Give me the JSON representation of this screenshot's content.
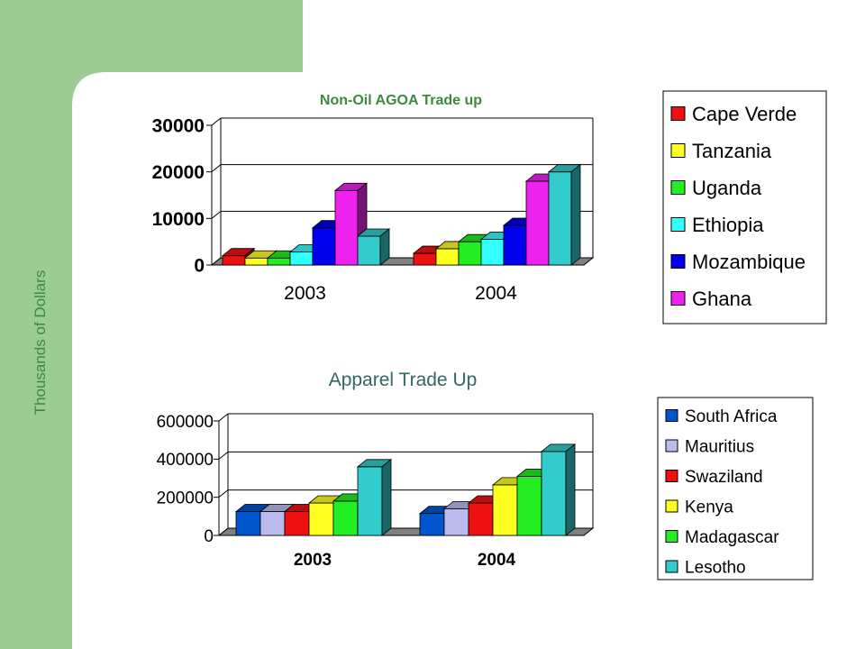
{
  "page": {
    "side_label": "Thousands of Dollars",
    "colors": {
      "sidebar": "#9ccc94",
      "panel": "#ffffff",
      "title_green": "#3d8a3d",
      "title_dark": "#336666"
    }
  },
  "chart_data": [
    {
      "type": "bar",
      "title": "Non-Oil AGOA Trade up",
      "categories": [
        "2003",
        "2004"
      ],
      "ylim": [
        0,
        30000
      ],
      "yticks": [
        "0",
        "10000",
        "20000",
        "30000"
      ],
      "grid": true,
      "legend_position": "right",
      "series": [
        {
          "name": "Cape Verde",
          "color": "#ee1111",
          "values": [
            2000,
            2500
          ]
        },
        {
          "name": "Tanzania",
          "color": "#ffff22",
          "values": [
            1500,
            3500
          ]
        },
        {
          "name": "Uganda",
          "color": "#22ee22",
          "values": [
            1500,
            5000
          ]
        },
        {
          "name": "Ethiopia",
          "color": "#33ffff",
          "values": [
            2800,
            5500
          ]
        },
        {
          "name": "Mozambique",
          "color": "#0000ee",
          "values": [
            8000,
            8500
          ]
        },
        {
          "name": "Ghana",
          "color": "#ee22ee",
          "values": [
            16000,
            18000
          ]
        },
        {
          "color": "#33cccc",
          "values": [
            6200,
            20000
          ]
        }
      ]
    },
    {
      "type": "bar",
      "title": "Apparel Trade Up",
      "categories": [
        "2003",
        "2004"
      ],
      "ylim": [
        0,
        600000
      ],
      "yticks": [
        "0",
        "200000",
        "400000",
        "600000"
      ],
      "grid": true,
      "legend_position": "right",
      "series": [
        {
          "name": "South Africa",
          "color": "#0055cc",
          "values": [
            125000,
            115000
          ]
        },
        {
          "name": "Mauritius",
          "color": "#bbbbee",
          "values": [
            125000,
            140000
          ]
        },
        {
          "name": "Swaziland",
          "color": "#ee1111",
          "values": [
            125000,
            170000
          ]
        },
        {
          "name": "Kenya",
          "color": "#ffff22",
          "values": [
            170000,
            265000
          ]
        },
        {
          "name": "Madagascar",
          "color": "#22ee22",
          "values": [
            180000,
            310000
          ]
        },
        {
          "name": "Lesotho",
          "color": "#33cccc",
          "values": [
            360000,
            440000
          ]
        }
      ]
    }
  ]
}
